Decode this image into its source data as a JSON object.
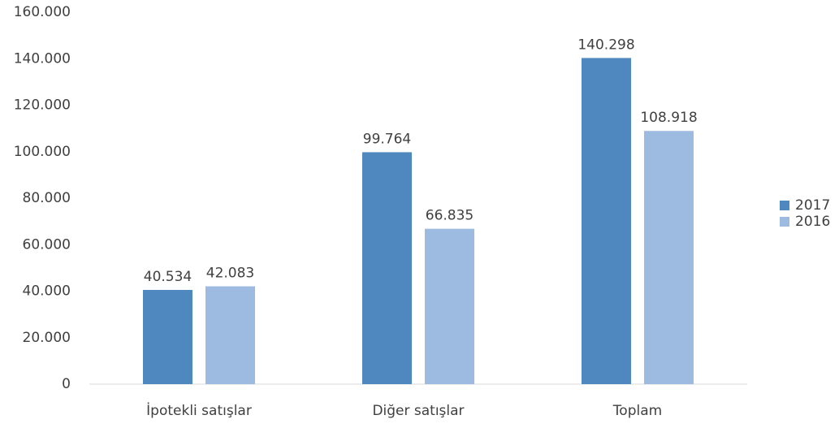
{
  "chart_data": {
    "type": "bar",
    "categories": [
      "İpotekli satışlar",
      "Diğer satışlar",
      "Toplam"
    ],
    "series": [
      {
        "name": "2017",
        "color": "#4f88bf",
        "values": [
          40534,
          99764,
          140298
        ],
        "value_labels": [
          "40.534",
          "99.764",
          "140.298"
        ]
      },
      {
        "name": "2016",
        "color": "#9dbbe0",
        "values": [
          42083,
          66835,
          108918
        ],
        "value_labels": [
          "42.083",
          "66.835",
          "108.918"
        ]
      }
    ],
    "ylim": [
      0,
      160000
    ],
    "yticks": [
      0,
      {
        "value": 20000,
        "label": "20.000"
      },
      {
        "value": 40000,
        "label": "40.000"
      },
      {
        "value": 60000,
        "label": "60.000"
      },
      {
        "value": 80000,
        "label": "80.000"
      },
      {
        "value": 100000,
        "label": "100.000"
      },
      {
        "value": 120000,
        "label": "120.000"
      },
      {
        "value": 140000,
        "label": "140.000"
      },
      {
        "value": 160000,
        "label": "160.000"
      }
    ],
    "grid": false,
    "legend": "right"
  }
}
